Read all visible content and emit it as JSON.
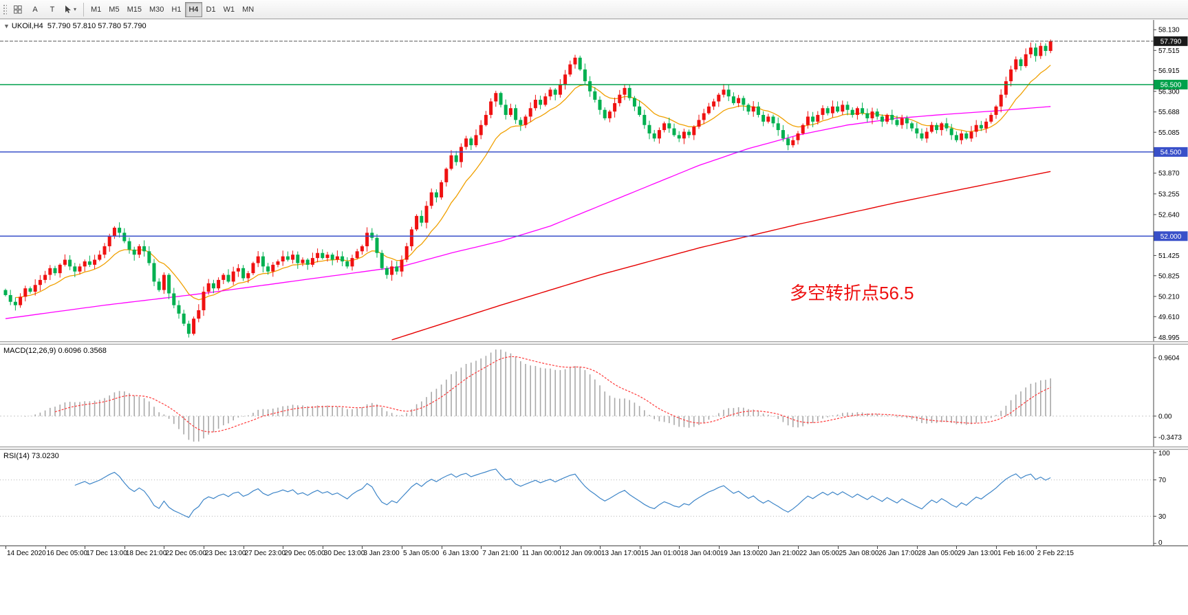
{
  "toolbar": {
    "buttons": [
      "A",
      "T"
    ],
    "caret_glyph": "▾",
    "timeframes": [
      "M1",
      "M5",
      "M15",
      "M30",
      "H1",
      "H4",
      "D1",
      "W1",
      "MN"
    ],
    "active_timeframe": "H4"
  },
  "chart_header": {
    "collapse_glyph": "▼",
    "symbol_label": "UKOil,H4",
    "ohlc_text": "57.790 57.810 57.780 57.790"
  },
  "panels": {
    "macd_label": "MACD(12,26,9) 0.6096 0.3568",
    "rsi_label": "RSI(14) 73.0230"
  },
  "chart_data": {
    "type": "candlestick",
    "symbol": "UKOil",
    "timeframe": "H4",
    "ohlc_current": {
      "open": "57.790",
      "high": "57.810",
      "low": "57.780",
      "close": "57.790"
    },
    "current_price": 57.79,
    "current_price_label": "57.790",
    "price_axis": {
      "min": 48.88,
      "max": 58.42,
      "ticks": [
        "58.130",
        "57.515",
        "56.915",
        "56.300",
        "55.688",
        "55.085",
        "53.870",
        "53.255",
        "52.640",
        "51.425",
        "50.825",
        "50.210",
        "49.610",
        "48.995"
      ]
    },
    "levels": [
      {
        "price": 56.5,
        "label": "56.500",
        "color": "#00a14b"
      },
      {
        "price": 54.5,
        "label": "54.500",
        "color": "#3950c9"
      },
      {
        "price": 52.0,
        "label": "52.000",
        "color": "#3950c9"
      }
    ],
    "first_open": 50.4,
    "closes": [
      50.25,
      50.05,
      49.95,
      50.2,
      50.45,
      50.35,
      50.55,
      50.7,
      50.85,
      51.05,
      50.9,
      51.15,
      51.3,
      51.1,
      50.95,
      51.1,
      51.25,
      51.15,
      51.3,
      51.45,
      51.7,
      52.0,
      52.25,
      52.1,
      51.85,
      51.6,
      51.45,
      51.7,
      51.55,
      51.2,
      50.65,
      50.4,
      50.85,
      50.3,
      49.95,
      49.7,
      49.4,
      49.1,
      49.55,
      49.8,
      50.35,
      50.6,
      50.45,
      50.7,
      50.85,
      50.65,
      50.95,
      51.05,
      50.75,
      50.9,
      51.2,
      51.4,
      51.1,
      50.95,
      51.15,
      51.25,
      51.4,
      51.3,
      51.45,
      51.2,
      51.3,
      51.15,
      51.35,
      51.5,
      51.35,
      51.45,
      51.3,
      51.4,
      51.25,
      51.1,
      51.35,
      51.55,
      51.7,
      52.1,
      51.95,
      51.5,
      51.05,
      50.85,
      51.1,
      50.95,
      51.3,
      51.7,
      52.2,
      52.6,
      52.4,
      52.9,
      53.3,
      53.15,
      53.6,
      54.0,
      54.4,
      54.2,
      54.65,
      54.9,
      54.7,
      55.0,
      55.3,
      55.6,
      56.0,
      56.25,
      55.9,
      55.6,
      55.8,
      55.45,
      55.3,
      55.55,
      55.8,
      56.05,
      55.9,
      56.15,
      56.35,
      56.2,
      56.5,
      56.8,
      57.1,
      57.3,
      56.95,
      56.6,
      56.3,
      56.05,
      55.75,
      55.5,
      55.7,
      55.95,
      56.2,
      56.4,
      56.1,
      55.85,
      55.6,
      55.3,
      55.05,
      54.9,
      55.15,
      55.35,
      55.2,
      55.0,
      54.9,
      55.1,
      55.0,
      55.25,
      55.45,
      55.65,
      55.85,
      56.0,
      56.2,
      56.35,
      56.15,
      55.95,
      56.1,
      55.9,
      55.7,
      55.85,
      55.6,
      55.4,
      55.55,
      55.35,
      55.15,
      54.9,
      54.7,
      54.85,
      55.05,
      55.3,
      55.55,
      55.4,
      55.6,
      55.8,
      55.65,
      55.85,
      55.7,
      55.9,
      55.75,
      55.6,
      55.8,
      55.65,
      55.5,
      55.7,
      55.55,
      55.4,
      55.6,
      55.45,
      55.3,
      55.5,
      55.35,
      55.2,
      55.05,
      54.9,
      55.1,
      55.3,
      55.15,
      55.35,
      55.2,
      55.0,
      54.85,
      55.05,
      54.9,
      55.1,
      55.3,
      55.2,
      55.4,
      55.6,
      55.85,
      56.2,
      56.6,
      56.95,
      57.25,
      57.05,
      57.4,
      57.6,
      57.35,
      57.65,
      57.5,
      57.79
    ],
    "candle_up_color": "#ef1111",
    "candle_down_color": "#00b050",
    "indicators": {
      "ma_fast": {
        "period": 12,
        "color": "#f0a000"
      },
      "ma_mid": {
        "color": "#ff00ff",
        "anchors": [
          [
            0,
            49.55
          ],
          [
            20,
            49.95
          ],
          [
            40,
            50.3
          ],
          [
            60,
            50.7
          ],
          [
            80,
            51.1
          ],
          [
            90,
            51.5
          ],
          [
            100,
            51.85
          ],
          [
            110,
            52.3
          ],
          [
            120,
            52.9
          ],
          [
            130,
            53.5
          ],
          [
            140,
            54.1
          ],
          [
            150,
            54.6
          ],
          [
            160,
            55.0
          ],
          [
            170,
            55.3
          ],
          [
            180,
            55.5
          ],
          [
            190,
            55.62
          ],
          [
            200,
            55.72
          ],
          [
            211,
            55.85
          ]
        ]
      },
      "ma_slow": {
        "color": "#e60000",
        "anchors": [
          [
            78,
            48.92
          ],
          [
            100,
            49.95
          ],
          [
            120,
            50.85
          ],
          [
            140,
            51.65
          ],
          [
            160,
            52.35
          ],
          [
            180,
            53.0
          ],
          [
            195,
            53.45
          ],
          [
            211,
            53.92
          ]
        ]
      },
      "macd": {
        "params": "12,26,9",
        "values": "0.6096 0.3568",
        "ticks": [
          "0.9604",
          "0.00",
          "-0.3473"
        ],
        "bar_color": "#a8a8a8",
        "signal_color": "#ff3838"
      },
      "rsi": {
        "period": 14,
        "value": "73.0230",
        "ticks": [
          "100",
          "70",
          "30",
          "0"
        ],
        "levels": [
          70,
          30
        ],
        "color": "#3d85c8"
      }
    },
    "time_labels": [
      "14 Dec 2020",
      "16 Dec 05:00",
      "17 Dec 13:00",
      "18 Dec 21:00",
      "22 Dec 05:00",
      "23 Dec 13:00",
      "27 Dec 23:00",
      "29 Dec 05:00",
      "30 Dec 13:00",
      "3 Jan 23:00",
      "5 Jan 05:00",
      "6 Jan 13:00",
      "7 Jan 21:00",
      "11 Jan 00:00",
      "12 Jan 09:00",
      "13 Jan 17:00",
      "15 Jan 01:00",
      "18 Jan 04:00",
      "19 Jan 13:00",
      "20 Jan 21:00",
      "22 Jan 05:00",
      "25 Jan 08:00",
      "26 Jan 17:00",
      "28 Jan 05:00",
      "29 Jan 13:00",
      "1 Feb 16:00",
      "2 Feb 22:15"
    ],
    "annotation": {
      "text": "多空转折点56.5",
      "color": "#ee1111"
    }
  }
}
